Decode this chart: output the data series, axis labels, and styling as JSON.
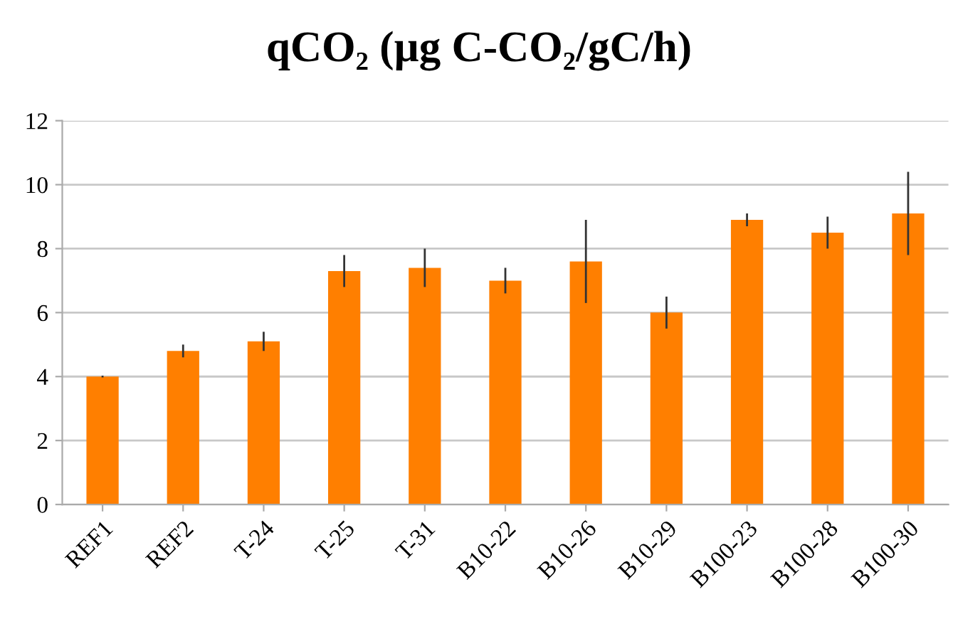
{
  "chart_data": {
    "type": "bar",
    "title": "qCO₂ (µg C-CO₂/gC/h)",
    "categories": [
      "REF1",
      "REF2",
      "T-24",
      "T-25",
      "T-31",
      "B10-22",
      "B10-26",
      "B10-29",
      "B100-23",
      "B100-28",
      "B100-30"
    ],
    "values": [
      4.0,
      4.8,
      5.1,
      7.3,
      7.4,
      7.0,
      7.6,
      6.0,
      8.9,
      8.5,
      9.1
    ],
    "errors": [
      0.03,
      0.2,
      0.3,
      0.5,
      0.6,
      0.4,
      1.3,
      0.5,
      0.2,
      0.5,
      1.3
    ],
    "color": "#ff7f00",
    "ylim": [
      0,
      12
    ],
    "yticks": [
      0,
      2,
      4,
      6,
      8,
      10,
      12
    ],
    "grid": "y"
  }
}
